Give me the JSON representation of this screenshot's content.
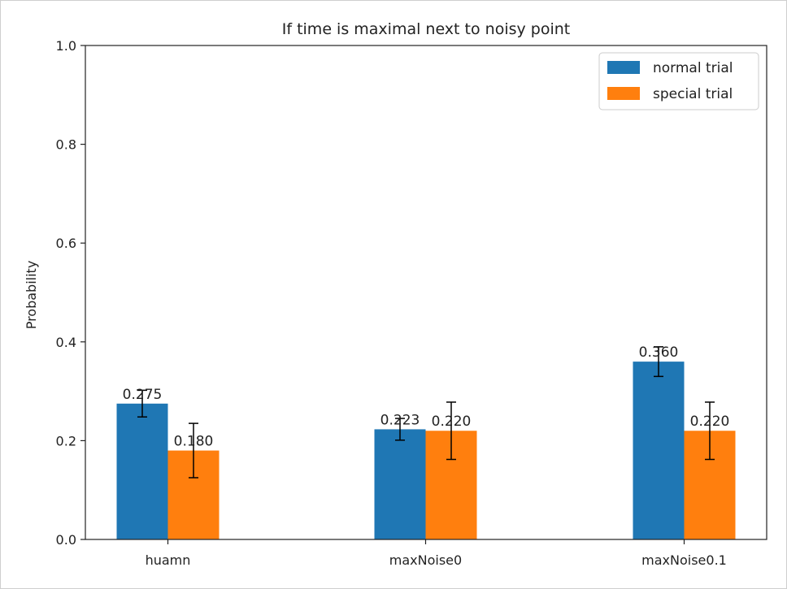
{
  "chart_data": {
    "type": "bar",
    "title": "If time is maximal next to noisy point",
    "xlabel": "",
    "ylabel": "Probability",
    "ylim": [
      0,
      1.0
    ],
    "yticks": [
      "0.0",
      "0.2",
      "0.4",
      "0.6",
      "0.8",
      "1.0"
    ],
    "categories": [
      "huamn",
      "maxNoise0",
      "maxNoise0.1"
    ],
    "series": [
      {
        "name": "normal trial",
        "color": "#1f77b4",
        "values": [
          0.275,
          0.223,
          0.36
        ],
        "labels": [
          "0.275",
          "0.223",
          "0.360"
        ],
        "errors": [
          0.027,
          0.022,
          0.03
        ]
      },
      {
        "name": "special trial",
        "color": "#ff7f0e",
        "values": [
          0.18,
          0.22,
          0.22
        ],
        "labels": [
          "0.180",
          "0.220",
          "0.220"
        ],
        "errors": [
          0.055,
          0.058,
          0.058
        ]
      }
    ],
    "grid": false,
    "legend_position": "top-right"
  }
}
